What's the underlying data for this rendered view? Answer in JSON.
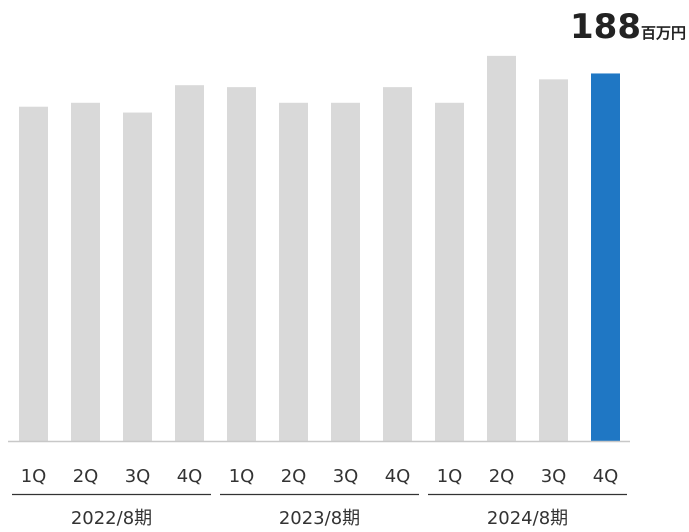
{
  "chart_data": {
    "type": "bar",
    "categories": [
      "1Q",
      "2Q",
      "3Q",
      "4Q",
      "1Q",
      "2Q",
      "3Q",
      "4Q",
      "1Q",
      "2Q",
      "3Q",
      "4Q"
    ],
    "groups": [
      {
        "label": "2022/8期",
        "count": 4
      },
      {
        "label": "2023/8期",
        "count": 4
      },
      {
        "label": "2024/8期",
        "count": 4
      }
    ],
    "values": [
      171,
      173,
      168,
      182,
      181,
      173,
      173,
      181,
      173,
      197,
      185,
      188
    ],
    "highlight_index": 11,
    "highlight_label": {
      "value": "188",
      "unit": "百万円"
    },
    "colors": {
      "bar": "#d9d9d9",
      "highlight": "#1f77c4",
      "axis": "#c8c8c8",
      "group_line": "#333333"
    },
    "ylim": [
      0,
      200
    ],
    "grid": false,
    "title": "",
    "xlabel": "",
    "ylabel": ""
  }
}
